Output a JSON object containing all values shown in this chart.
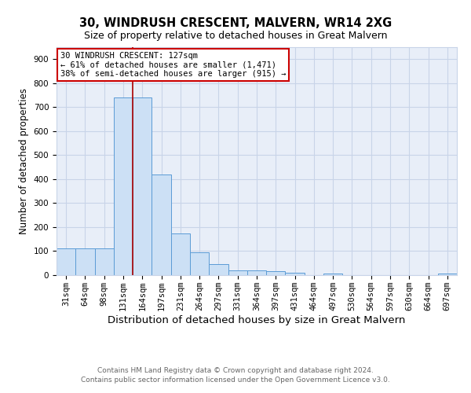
{
  "title": "30, WINDRUSH CRESCENT, MALVERN, WR14 2XG",
  "subtitle": "Size of property relative to detached houses in Great Malvern",
  "xlabel": "Distribution of detached houses by size in Great Malvern",
  "ylabel": "Number of detached properties",
  "categories": [
    "31sqm",
    "64sqm",
    "98sqm",
    "131sqm",
    "164sqm",
    "197sqm",
    "231sqm",
    "264sqm",
    "297sqm",
    "331sqm",
    "364sqm",
    "397sqm",
    "431sqm",
    "464sqm",
    "497sqm",
    "530sqm",
    "564sqm",
    "597sqm",
    "630sqm",
    "664sqm",
    "697sqm"
  ],
  "values": [
    110,
    110,
    110,
    740,
    740,
    420,
    175,
    95,
    45,
    20,
    20,
    15,
    10,
    0,
    5,
    0,
    0,
    0,
    0,
    0,
    8
  ],
  "bar_color": "#cce0f5",
  "bar_edge_color": "#5b9bd5",
  "grid_color": "#c8d4e8",
  "bg_color": "#e8eef8",
  "redline_x": 3.5,
  "annotation_text": "30 WINDRUSH CRESCENT: 127sqm\n← 61% of detached houses are smaller (1,471)\n38% of semi-detached houses are larger (915) →",
  "annotation_box_color": "#ffffff",
  "annotation_box_edge": "#cc0000",
  "redline_color": "#aa0000",
  "ylim": [
    0,
    950
  ],
  "yticks": [
    0,
    100,
    200,
    300,
    400,
    500,
    600,
    700,
    800,
    900
  ],
  "footer_line1": "Contains HM Land Registry data © Crown copyright and database right 2024.",
  "footer_line2": "Contains public sector information licensed under the Open Government Licence v3.0.",
  "title_fontsize": 10.5,
  "subtitle_fontsize": 9,
  "xlabel_fontsize": 9.5,
  "ylabel_fontsize": 8.5,
  "tick_fontsize": 7.5,
  "footer_fontsize": 6.5,
  "annotation_fontsize": 7.5
}
